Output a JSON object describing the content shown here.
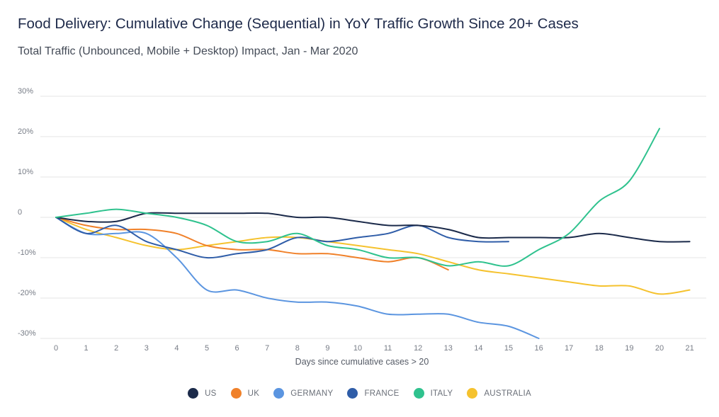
{
  "header": {
    "title": "Food Delivery: Cumulative Change (Sequential) in YoY Traffic Growth Since 20+ Cases",
    "subtitle": "Total Traffic (Unbounced, Mobile + Desktop) Impact, Jan - Mar 2020"
  },
  "chart_data": {
    "type": "line",
    "title": "Food Delivery: Cumulative Change (Sequential) in YoY Traffic Growth Since 20+ Cases",
    "subtitle": "Total Traffic (Unbounced, Mobile + Desktop) Impact, Jan - Mar 2020",
    "xlabel": "Days since cumulative cases > 20",
    "ylabel": "",
    "x": [
      0,
      1,
      2,
      3,
      4,
      5,
      6,
      7,
      8,
      9,
      10,
      11,
      12,
      13,
      14,
      15,
      16,
      17,
      18,
      19,
      20,
      21
    ],
    "x_tick_labels": [
      "0",
      "1",
      "2",
      "3",
      "4",
      "5",
      "6",
      "7",
      "8",
      "9",
      "10",
      "11",
      "12",
      "13",
      "14",
      "15",
      "16",
      "17",
      "18",
      "19",
      "20",
      "21"
    ],
    "ylim": [
      -30,
      30
    ],
    "y_ticks": [
      30,
      20,
      10,
      0,
      -10,
      -20,
      -30
    ],
    "y_tick_labels": [
      "30%",
      "20%",
      "10%",
      "0",
      "-10%",
      "-20%",
      "-30%"
    ],
    "grid": "horizontal",
    "legend_position": "bottom",
    "series": [
      {
        "name": "US",
        "color": "#1b2a4a",
        "x": [
          0,
          1,
          2,
          3,
          4,
          5,
          6,
          7,
          8,
          9,
          10,
          11,
          12,
          13,
          14,
          15,
          16,
          17,
          18,
          19,
          20,
          21
        ],
        "values": [
          0,
          -1,
          -1,
          1,
          1,
          1,
          1,
          1,
          0,
          0,
          -1,
          -2,
          -2,
          -3,
          -5,
          -5,
          -5,
          -5,
          -4,
          -5,
          -6,
          -6
        ]
      },
      {
        "name": "UK",
        "color": "#f0812a",
        "x": [
          0,
          1,
          2,
          3,
          4,
          5,
          6,
          7,
          8,
          9,
          10,
          11,
          12,
          13
        ],
        "values": [
          0,
          -2,
          -3,
          -3,
          -4,
          -7,
          -8,
          -8,
          -9,
          -9,
          -10,
          -11,
          -10,
          -13
        ]
      },
      {
        "name": "GERMANY",
        "color": "#5b95e0",
        "x": [
          0,
          1,
          2,
          3,
          4,
          5,
          6,
          7,
          8,
          9,
          10,
          11,
          12,
          13,
          14,
          15,
          16
        ],
        "values": [
          0,
          -4,
          -4,
          -4,
          -10,
          -18,
          -18,
          -20,
          -21,
          -21,
          -22,
          -24,
          -24,
          -24,
          -26,
          -27,
          -30
        ]
      },
      {
        "name": "FRANCE",
        "color": "#2f5da8",
        "x": [
          0,
          1,
          2,
          3,
          4,
          5,
          6,
          7,
          8,
          9,
          10,
          11,
          12,
          13,
          14,
          15
        ],
        "values": [
          0,
          -4,
          -2,
          -6,
          -8,
          -10,
          -9,
          -8,
          -5,
          -6,
          -5,
          -4,
          -2,
          -5,
          -6,
          -6
        ]
      },
      {
        "name": "ITALY",
        "color": "#2fc28e",
        "x": [
          0,
          1,
          2,
          3,
          4,
          5,
          6,
          7,
          8,
          9,
          10,
          11,
          12,
          13,
          14,
          15,
          16,
          17,
          18,
          19,
          20
        ],
        "values": [
          0,
          1,
          2,
          1,
          0,
          -2,
          -6,
          -6,
          -4,
          -7,
          -8,
          -10,
          -10,
          -12,
          -11,
          -12,
          -8,
          -4,
          4,
          9,
          22
        ]
      },
      {
        "name": "AUSTRALIA",
        "color": "#f5c22e",
        "x": [
          0,
          1,
          2,
          3,
          4,
          5,
          6,
          7,
          8,
          9,
          10,
          11,
          12,
          13,
          14,
          15,
          16,
          17,
          18,
          19,
          20,
          21
        ],
        "values": [
          0,
          -3,
          -5,
          -7,
          -8,
          -7,
          -6,
          -5,
          -5,
          -6,
          -7,
          -8,
          -9,
          -11,
          -13,
          -14,
          -15,
          -16,
          -17,
          -17,
          -19,
          -18
        ]
      }
    ]
  }
}
